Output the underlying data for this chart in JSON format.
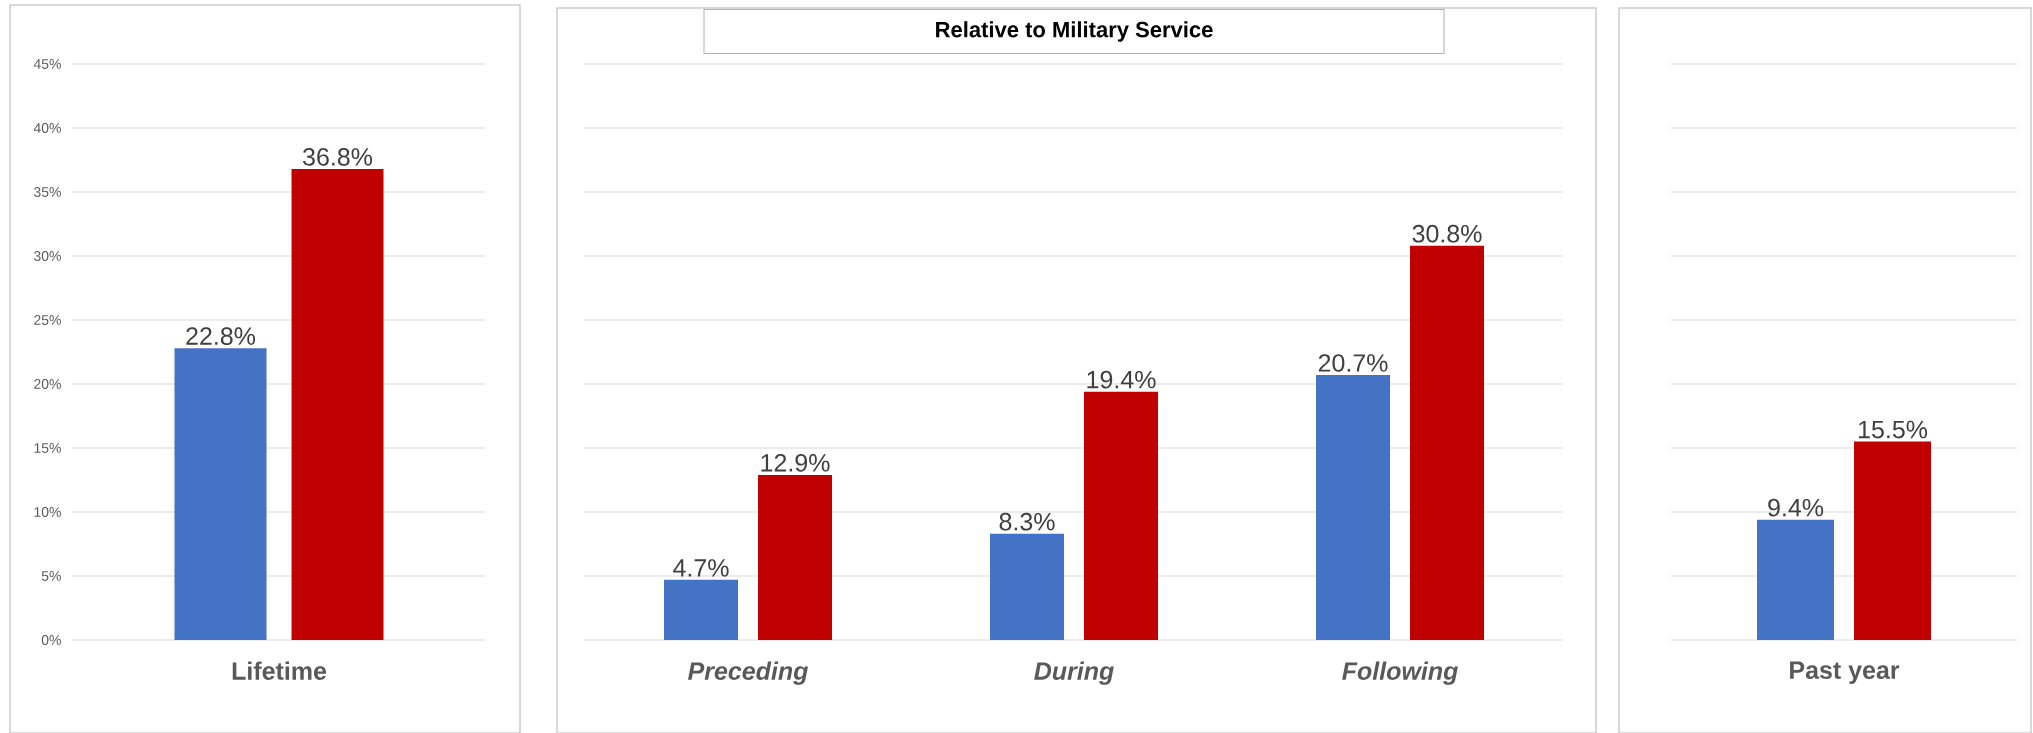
{
  "chart_data": [
    {
      "type": "bar",
      "categories": [
        "Lifetime"
      ],
      "series": [
        {
          "color": "#4472c4",
          "values": [
            22.8
          ],
          "value_labels": [
            "22.8%"
          ]
        },
        {
          "color": "#c00000",
          "values": [
            36.8
          ],
          "value_labels": [
            "36.8%"
          ]
        }
      ],
      "ylim": [
        0,
        45
      ],
      "yticks": [
        {
          "value": 0,
          "label": "0%"
        },
        {
          "value": 5,
          "label": "5%"
        },
        {
          "value": 10,
          "label": "10%"
        },
        {
          "value": 15,
          "label": "15%"
        },
        {
          "value": 20,
          "label": "20%"
        },
        {
          "value": 25,
          "label": "25%"
        },
        {
          "value": 30,
          "label": "30%"
        },
        {
          "value": 35,
          "label": "35%"
        },
        {
          "value": 40,
          "label": "40%"
        },
        {
          "value": 45,
          "label": "45%"
        }
      ],
      "grid": "y"
    },
    {
      "type": "bar",
      "title": "Relative to Military Service",
      "categories": [
        "Preceding",
        "During",
        "Following"
      ],
      "series": [
        {
          "color": "#4472c4",
          "values": [
            4.7,
            8.3,
            20.7
          ],
          "value_labels": [
            "4.7%",
            "8.3%",
            "20.7%"
          ]
        },
        {
          "color": "#c00000",
          "values": [
            12.9,
            19.4,
            30.8
          ],
          "value_labels": [
            "12.9%",
            "19.4%",
            "30.8%"
          ]
        }
      ],
      "ylim": [
        0,
        45
      ],
      "yticks": [
        {
          "value": 0,
          "label": null
        },
        {
          "value": 5,
          "label": null
        },
        {
          "value": 10,
          "label": null
        },
        {
          "value": 15,
          "label": null
        },
        {
          "value": 20,
          "label": null
        },
        {
          "value": 25,
          "label": null
        },
        {
          "value": 30,
          "label": null
        },
        {
          "value": 35,
          "label": null
        },
        {
          "value": 40,
          "label": null
        },
        {
          "value": 45,
          "label": null
        }
      ],
      "grid": "y",
      "tick_labels": "x"
    },
    {
      "type": "bar",
      "categories": [
        "Past year"
      ],
      "series": [
        {
          "color": "#4472c4",
          "values": [
            9.4
          ],
          "value_labels": [
            "9.4%"
          ]
        },
        {
          "color": "#c00000",
          "values": [
            15.5
          ],
          "value_labels": [
            "15.5%"
          ]
        }
      ],
      "ylim": [
        0,
        45
      ],
      "yticks": [
        {
          "value": 0,
          "label": null
        },
        {
          "value": 5,
          "label": null
        },
        {
          "value": 10,
          "label": null
        },
        {
          "value": 15,
          "label": null
        },
        {
          "value": 20,
          "label": null
        },
        {
          "value": 25,
          "label": null
        },
        {
          "value": 30,
          "label": null
        },
        {
          "value": 35,
          "label": null
        },
        {
          "value": 40,
          "label": null
        },
        {
          "value": 45,
          "label": null
        }
      ],
      "grid": "y",
      "tick_labels": "x"
    }
  ]
}
